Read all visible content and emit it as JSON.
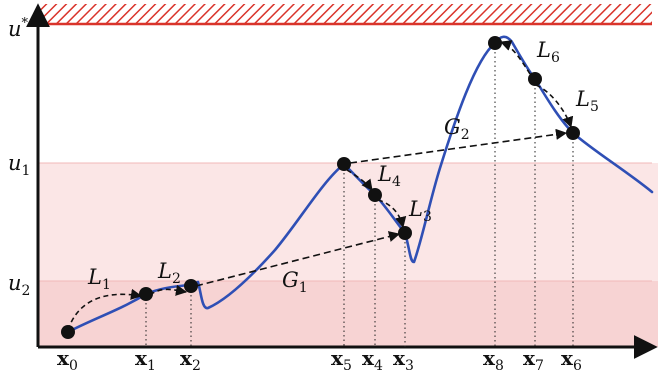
{
  "y_axis_labels": {
    "u_star": {
      "base": "u",
      "sup": "*"
    },
    "u1": {
      "base": "u",
      "sub": "1"
    },
    "u2": {
      "base": "u",
      "sub": "2"
    }
  },
  "x_points": [
    {
      "base": "x",
      "sub": "0"
    },
    {
      "base": "x",
      "sub": "1"
    },
    {
      "base": "x",
      "sub": "2"
    },
    {
      "base": "x",
      "sub": "5"
    },
    {
      "base": "x",
      "sub": "4"
    },
    {
      "base": "x",
      "sub": "3"
    },
    {
      "base": "x",
      "sub": "8"
    },
    {
      "base": "x",
      "sub": "7"
    },
    {
      "base": "x",
      "sub": "6"
    }
  ],
  "local_steps": [
    {
      "base": "L",
      "sub": "1"
    },
    {
      "base": "L",
      "sub": "2"
    },
    {
      "base": "L",
      "sub": "3"
    },
    {
      "base": "L",
      "sub": "4"
    },
    {
      "base": "L",
      "sub": "5"
    },
    {
      "base": "L",
      "sub": "6"
    }
  ],
  "global_steps": [
    {
      "base": "G",
      "sub": "1"
    },
    {
      "base": "G",
      "sub": "2"
    }
  ],
  "colors": {
    "curve": "#2f4fb5",
    "threshold_hatch": "#d9342b",
    "band_upper": "#fbe6e6",
    "band_lower": "#f7d3d3",
    "points": "#111111",
    "arrows": "#111111"
  }
}
